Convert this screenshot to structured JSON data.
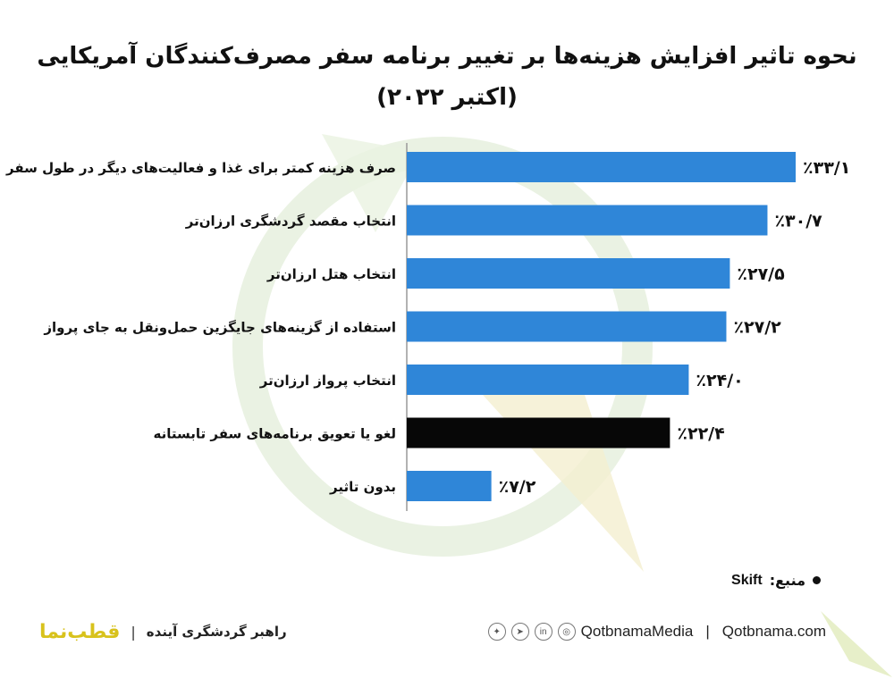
{
  "title": "نحوه تاثیر افزایش هزینه‌ها بر تغییر برنامه سفر مصرف‌کنندگان آمریکایی (اکتبر ۲۰۲۲)",
  "source_label": "منبع:",
  "source_value": "Skift",
  "footer": {
    "logo_text": "قطب‌نما",
    "separator": "|",
    "tagline": "راهبر گردشگری آینده",
    "handle": "QotbnamaMedia",
    "divider": "|",
    "website": "Qotbnama.com",
    "social_icons": [
      "twitter-icon",
      "telegram-icon",
      "linkedin-icon",
      "instagram-icon"
    ]
  },
  "colors": {
    "bar": "#2f86d8",
    "highlight_bar": "#070707",
    "watermark_green": "#dcead0",
    "watermark_yellow": "#f3ecc8"
  },
  "chart_data": {
    "type": "bar",
    "orientation": "horizontal",
    "categories": [
      "صرف هزینه کمتر برای غذا و فعالیت‌های دیگر در طول سفر",
      "انتخاب مقصد گردشگری ارزان‌تر",
      "انتخاب هتل ارزان‌تر",
      "استفاده از گزینه‌های جایگزین حمل‌ونقل به جای پرواز",
      "انتخاب پرواز ارزان‌تر",
      "لغو یا تعویق برنامه‌های سفر تابستانه",
      "بدون تاثیر"
    ],
    "values": [
      33.1,
      30.7,
      27.5,
      27.2,
      24.0,
      22.4,
      7.2
    ],
    "value_labels": [
      "٪۳۳/۱",
      "٪۳۰/۷",
      "٪۲۷/۵",
      "٪۲۷/۲",
      "٪۲۴/۰",
      "٪۲۲/۴",
      "٪۷/۲"
    ],
    "highlight_index": 5,
    "unit": "%",
    "xlim": [
      0,
      33.1
    ],
    "grid": false,
    "legend": "none"
  }
}
